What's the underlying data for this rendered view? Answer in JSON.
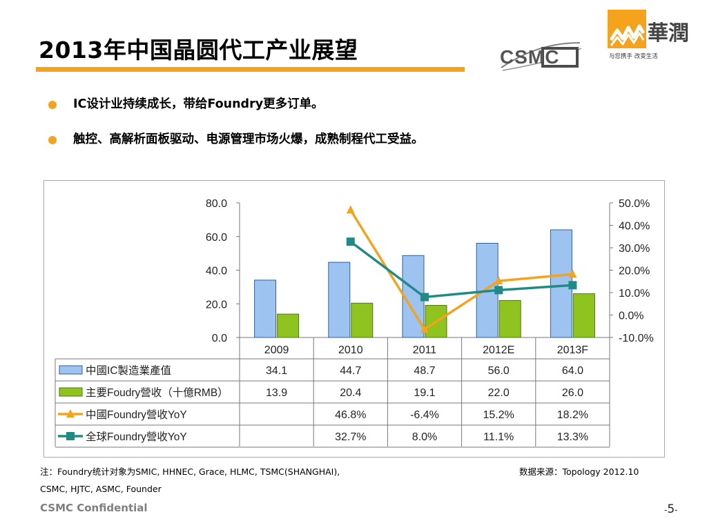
{
  "slide": {
    "title": "2013年中国晶圆代工产业展望",
    "bullets": [
      "IC设计业持续成长，带给Foundry更多订单。",
      "触控、高解析面板驱动、电源管理市场火爆，成熟制程代工受益。"
    ],
    "note_line1": "注：Foundry统计对象为SMIC, HHNEC, Grace, HLMC, TSMC(SHANGHAI),",
    "note_line2": "CSMC, HJTC, ASMC, Founder",
    "source": "数据来源：Topology 2012.10",
    "confidential": "CSMC Confidential",
    "page_number": "5",
    "page_dash_left": "-",
    "page_dash_right": "-",
    "accent_color": "#f5a21c"
  },
  "logos": {
    "csmc_text": "CSMC",
    "huarun_chars": "華潤",
    "huarun_slogan": "与您携手  改变生活",
    "huarun_color": "#f5a21c"
  },
  "chart_data": {
    "type": "bar",
    "categories": [
      "2009",
      "2010",
      "2011",
      "2012E",
      "2013F"
    ],
    "series": [
      {
        "name": "中國IC製造業產值",
        "kind": "bar",
        "axis": "left",
        "color": "#9dc3f0",
        "stroke": "#2f5f9a",
        "values": [
          34.1,
          44.7,
          48.7,
          56.0,
          64.0
        ],
        "labels": [
          "34.1",
          "44.7",
          "48.7",
          "56.0",
          "64.0"
        ]
      },
      {
        "name": "主要Foudry營收（十億RMB）",
        "kind": "bar",
        "axis": "left",
        "color": "#8fc31f",
        "stroke": "#4d7a0c",
        "values": [
          13.9,
          20.4,
          19.1,
          22.0,
          26.0
        ],
        "labels": [
          "13.9",
          "20.4",
          "19.1",
          "22.0",
          "26.0"
        ]
      },
      {
        "name": "中國Foundry營收YoY",
        "kind": "line",
        "marker": "triangle",
        "axis": "right",
        "color": "#f5a21c",
        "values": [
          null,
          46.8,
          -6.4,
          15.2,
          18.2
        ],
        "labels": [
          "",
          "46.8%",
          "-6.4%",
          "15.2%",
          "18.2%"
        ]
      },
      {
        "name": "全球Foundry營收YoY",
        "kind": "line",
        "marker": "square",
        "axis": "right",
        "color": "#1f8a86",
        "values": [
          null,
          32.7,
          8.0,
          11.1,
          13.3
        ],
        "labels": [
          "",
          "32.7%",
          "8.0%",
          "11.1%",
          "13.3%"
        ]
      }
    ],
    "y_left": {
      "min": 0,
      "max": 80,
      "ticks": [
        "0.0",
        "20.0",
        "40.0",
        "60.0",
        "80.0"
      ]
    },
    "y_right": {
      "min": -10,
      "max": 50,
      "ticks": [
        "-10.0%",
        "0.0%",
        "10.0%",
        "20.0%",
        "30.0%",
        "40.0%",
        "50.0%"
      ]
    },
    "grid": false,
    "data_table": true
  }
}
